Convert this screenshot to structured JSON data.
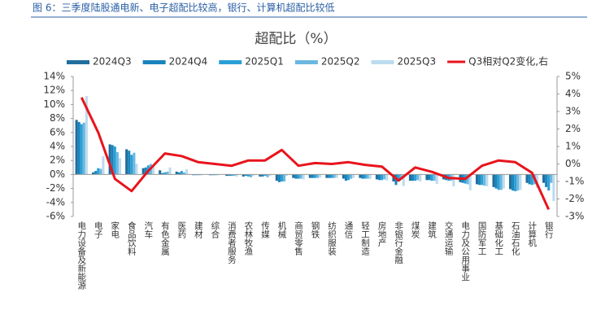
{
  "header": "图 6：三季度陆股通电新、电子超配比较高，银行、计算机超配比较低",
  "chart_data": {
    "type": "bar",
    "title": "超配比（%）",
    "categories": [
      "电力设备及新能源",
      "电子",
      "家电",
      "食品饮料",
      "汽车",
      "有色金属",
      "医药",
      "建材",
      "综合",
      "消费者服务",
      "农林牧渔",
      "传媒",
      "机械",
      "商贸零售",
      "钢铁",
      "纺织服装",
      "通信",
      "轻工制造",
      "房地产",
      "非银行金融",
      "煤炭",
      "建筑",
      "交通运输",
      "电力及公用事业",
      "国防军工",
      "基础化工",
      "石油石化",
      "计算机",
      "银行"
    ],
    "series": [
      {
        "name": "2024Q3",
        "color": "#1f6e9c",
        "values": [
          7.8,
          0.3,
          4.3,
          3.6,
          0.9,
          0.6,
          0.4,
          -0.1,
          -0.1,
          -0.2,
          -0.3,
          -0.3,
          -0.9,
          -0.5,
          -0.5,
          -0.5,
          -0.6,
          -0.5,
          -0.7,
          -1.0,
          -0.9,
          -0.8,
          -0.7,
          -1.1,
          -1.4,
          -1.8,
          -2.1,
          -1.2,
          -1.2
        ]
      },
      {
        "name": "2024Q4",
        "color": "#1a84bd",
        "values": [
          7.5,
          0.5,
          4.2,
          3.4,
          1.0,
          0.2,
          0.3,
          -0.1,
          -0.1,
          -0.2,
          -0.2,
          -0.3,
          -1.1,
          -0.6,
          -0.5,
          -0.5,
          -0.9,
          -0.6,
          -0.8,
          -1.5,
          -0.9,
          -0.8,
          -0.8,
          -1.2,
          -1.5,
          -2.0,
          -2.3,
          -1.4,
          -1.8
        ]
      },
      {
        "name": "2025Q1",
        "color": "#2b9fd6",
        "values": [
          7.2,
          0.9,
          4.0,
          2.8,
          1.3,
          0.3,
          0.5,
          -0.1,
          -0.1,
          -0.2,
          -0.3,
          -0.2,
          -1.0,
          -0.6,
          -0.5,
          -0.5,
          -0.8,
          -0.6,
          -0.8,
          -1.0,
          -0.9,
          -0.9,
          -0.9,
          -1.3,
          -1.5,
          -2.2,
          -2.4,
          -1.5,
          -2.3
        ]
      },
      {
        "name": "2025Q2",
        "color": "#6bb7df",
        "values": [
          7.4,
          0.8,
          3.2,
          3.1,
          1.5,
          0.4,
          0.3,
          -0.1,
          -0.1,
          -0.2,
          -0.4,
          -0.4,
          -1.0,
          -0.6,
          -0.5,
          -0.5,
          -0.6,
          -0.6,
          -0.7,
          -0.7,
          -0.8,
          -0.9,
          -0.9,
          -1.4,
          -1.6,
          -2.2,
          -2.3,
          -1.4,
          -1.2
        ]
      },
      {
        "name": "2025Q3",
        "color": "#bcdcef",
        "values": [
          11.2,
          2.6,
          2.35,
          1.55,
          1.1,
          1.0,
          0.75,
          0.0,
          0.0,
          -0.3,
          -0.2,
          -0.2,
          -0.2,
          -0.7,
          -0.45,
          -0.5,
          -0.5,
          -0.65,
          -0.85,
          -1.65,
          -1.0,
          -1.35,
          -1.7,
          -2.25,
          -1.7,
          -2.0,
          -2.2,
          -1.9,
          -3.8
        ]
      },
      {
        "name": "Q3相对Q2变化,右",
        "color": "#e8141c",
        "type": "line",
        "axis": "y2",
        "values": [
          3.8,
          1.8,
          -0.85,
          -1.55,
          -0.4,
          0.6,
          0.45,
          0.1,
          0.0,
          -0.1,
          0.2,
          0.2,
          0.8,
          -0.1,
          0.05,
          0.0,
          0.1,
          -0.05,
          -0.15,
          -0.95,
          -0.2,
          -0.45,
          -0.8,
          -0.85,
          -0.1,
          0.2,
          0.1,
          -0.5,
          -2.6
        ]
      }
    ],
    "ylim": [
      -6,
      14
    ],
    "yticks": [
      {
        "value": -6,
        "label": "-6%"
      },
      {
        "value": -4,
        "label": "-4%"
      },
      {
        "value": -2,
        "label": "-2%"
      },
      {
        "value": 0,
        "label": "0%"
      },
      {
        "value": 2,
        "label": "2%"
      },
      {
        "value": 4,
        "label": "4%"
      },
      {
        "value": 6,
        "label": "6%"
      },
      {
        "value": 8,
        "label": "8%"
      },
      {
        "value": 10,
        "label": "10%"
      },
      {
        "value": 12,
        "label": "12%"
      },
      {
        "value": 14,
        "label": "14%"
      }
    ],
    "y2lim": [
      -3,
      5
    ],
    "y2ticks": [
      {
        "value": -3,
        "label": "-3%"
      },
      {
        "value": -2,
        "label": "-2%"
      },
      {
        "value": -1,
        "label": "-1%"
      },
      {
        "value": 0,
        "label": "0%"
      },
      {
        "value": 1,
        "label": "1%"
      },
      {
        "value": 2,
        "label": "2%"
      },
      {
        "value": 3,
        "label": "3%"
      },
      {
        "value": 4,
        "label": "4%"
      },
      {
        "value": 5,
        "label": "5%"
      }
    ],
    "grid": false
  }
}
